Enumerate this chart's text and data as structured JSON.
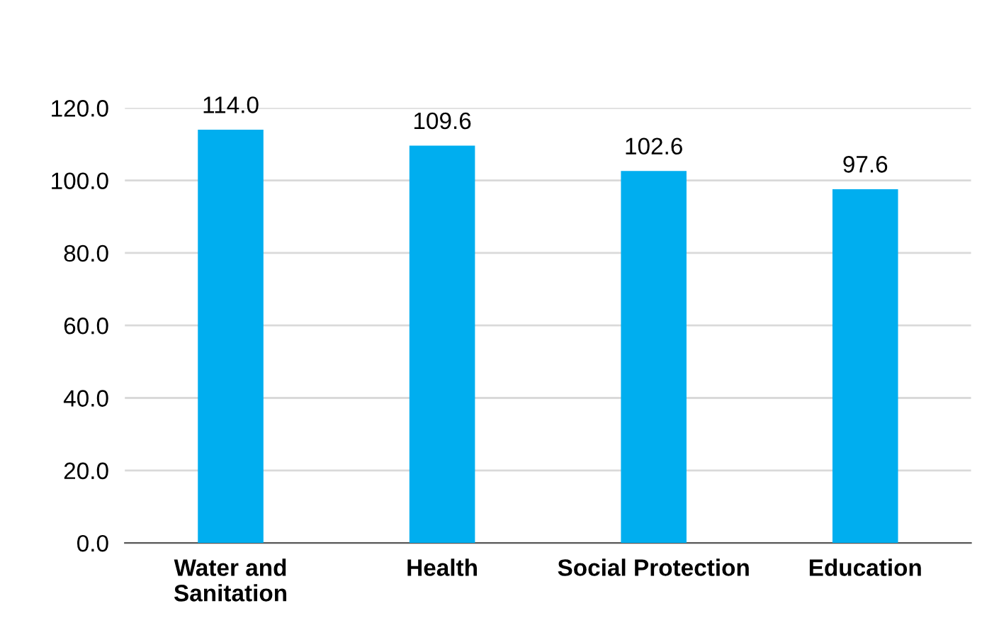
{
  "chart_data": {
    "type": "bar",
    "categories": [
      "Water and\nSanitation",
      "Health",
      "Social Protection",
      "Education"
    ],
    "values": [
      114.0,
      109.6,
      102.6,
      97.6
    ],
    "color": "#00aeef",
    "value_labels": [
      "114.0",
      "109.6",
      "102.6",
      "97.6"
    ],
    "ylim": [
      0,
      120
    ],
    "yticks": [
      {
        "value": 0,
        "label": "0.0"
      },
      {
        "value": 20,
        "label": "20.0"
      },
      {
        "value": 40,
        "label": "40.0"
      },
      {
        "value": 60,
        "label": "60.0"
      },
      {
        "value": 80,
        "label": "80.0"
      },
      {
        "value": 100,
        "label": "100.0"
      },
      {
        "value": 120,
        "label": "120.0"
      }
    ],
    "grid": "y"
  }
}
